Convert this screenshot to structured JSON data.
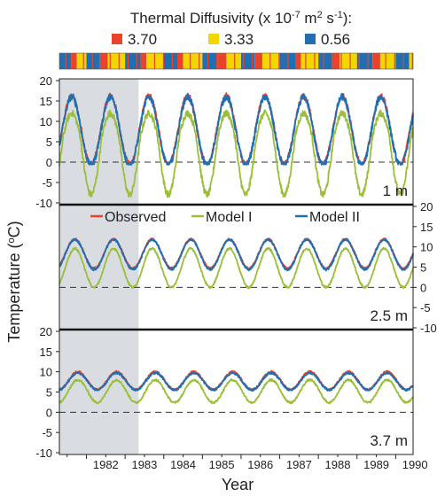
{
  "chart_data": {
    "type": "line",
    "header": {
      "title_text": "Thermal Diffusivity (x 10",
      "title_exp": "-7",
      "title_unit": " m",
      "title_unit_exp": "2",
      "title_unit2": " s",
      "title_unit2_exp": "-1",
      "title_tail": "):",
      "legend": [
        {
          "label": "3.70",
          "color": "#e8432b"
        },
        {
          "label": "3.33",
          "color": "#f2d600"
        },
        {
          "label": "0.56",
          "color": "#1f6fb2"
        }
      ],
      "diffusivity_strip": [
        {
          "start": 1981.3,
          "end": 1981.6,
          "class": "0.56"
        },
        {
          "start": 1981.6,
          "end": 1981.75,
          "class": "3.70"
        },
        {
          "start": 1981.75,
          "end": 1982.0,
          "class": "3.33"
        },
        {
          "start": 1982.0,
          "end": 1982.35,
          "class": "0.56"
        },
        {
          "start": 1982.35,
          "end": 1982.55,
          "class": "3.70"
        },
        {
          "start": 1982.55,
          "end": 1983.0,
          "class": "3.33"
        },
        {
          "start": 1983.0,
          "end": 1983.4,
          "class": "0.56"
        },
        {
          "start": 1983.4,
          "end": 1983.55,
          "class": "3.70"
        },
        {
          "start": 1983.55,
          "end": 1984.0,
          "class": "3.33"
        },
        {
          "start": 1984.0,
          "end": 1984.35,
          "class": "0.56"
        },
        {
          "start": 1984.35,
          "end": 1984.5,
          "class": "3.70"
        },
        {
          "start": 1984.5,
          "end": 1985.0,
          "class": "3.33"
        },
        {
          "start": 1985.0,
          "end": 1985.4,
          "class": "0.56"
        },
        {
          "start": 1985.4,
          "end": 1985.6,
          "class": "3.70"
        },
        {
          "start": 1985.6,
          "end": 1986.0,
          "class": "3.33"
        },
        {
          "start": 1986.0,
          "end": 1986.35,
          "class": "0.56"
        },
        {
          "start": 1986.35,
          "end": 1986.55,
          "class": "3.70"
        },
        {
          "start": 1986.55,
          "end": 1987.0,
          "class": "3.33"
        },
        {
          "start": 1987.0,
          "end": 1987.4,
          "class": "0.56"
        },
        {
          "start": 1987.4,
          "end": 1987.55,
          "class": "3.70"
        },
        {
          "start": 1987.55,
          "end": 1988.0,
          "class": "3.33"
        },
        {
          "start": 1988.0,
          "end": 1988.35,
          "class": "0.56"
        },
        {
          "start": 1988.35,
          "end": 1988.55,
          "class": "3.70"
        },
        {
          "start": 1988.55,
          "end": 1989.0,
          "class": "3.33"
        },
        {
          "start": 1989.0,
          "end": 1989.4,
          "class": "0.56"
        },
        {
          "start": 1989.4,
          "end": 1989.6,
          "class": "3.70"
        },
        {
          "start": 1989.6,
          "end": 1990.0,
          "class": "3.33"
        },
        {
          "start": 1990.0,
          "end": 1990.35,
          "class": "0.56"
        },
        {
          "start": 1990.35,
          "end": 1990.5,
          "class": "3.33"
        }
      ]
    },
    "xlabel": "Year",
    "ylabel": "Temperature (",
    "ylabel_sup": "o",
    "ylabel_tail": "C)",
    "xlim": [
      1981.3,
      1990.45
    ],
    "xticks": [
      1982,
      1983,
      1984,
      1985,
      1986,
      1987,
      1988,
      1989,
      1990
    ],
    "shaded_region": [
      1981.3,
      1983.35
    ],
    "series_legend": [
      {
        "name": "Observed",
        "color": "#e8432b"
      },
      {
        "name": "Model I",
        "color": "#9bbf3a"
      },
      {
        "name": "Model II",
        "color": "#1f6fb2"
      }
    ],
    "panels": [
      {
        "depth_label": "1 m",
        "ylim": [
          -10,
          20
        ],
        "yticks": [
          -10,
          -5,
          0,
          5,
          10,
          15,
          20
        ],
        "y_axis_side": "left",
        "zero_line": true,
        "series": [
          {
            "name": "Observed",
            "mean": 7.8,
            "amp": 8.4,
            "phase": 0.62,
            "floor": 0.0
          },
          {
            "name": "Model I",
            "mean": 4.0,
            "amp": 12.0,
            "phase": 0.62,
            "floor": -9.0
          },
          {
            "name": "Model II",
            "mean": 7.6,
            "amp": 8.4,
            "phase": 0.62,
            "floor": -0.5
          }
        ]
      },
      {
        "depth_label": "2.5 m",
        "ylim": [
          -10,
          20
        ],
        "yticks": [
          -10,
          -5,
          0,
          5,
          10,
          15,
          20
        ],
        "y_axis_side": "right",
        "zero_line": true,
        "series": [
          {
            "name": "Observed",
            "mean": 8.3,
            "amp": 3.6,
            "phase": 0.7,
            "floor": 4.0
          },
          {
            "name": "Model I",
            "mean": 4.8,
            "amp": 4.8,
            "phase": 0.7,
            "floor": -1.0
          },
          {
            "name": "Model II",
            "mean": 8.1,
            "amp": 3.7,
            "phase": 0.7,
            "floor": 4.0
          }
        ]
      },
      {
        "depth_label": "3.7 m",
        "ylim": [
          -10,
          20
        ],
        "yticks": [
          -10,
          -5,
          0,
          5,
          10,
          15,
          20
        ],
        "y_axis_side": "left",
        "zero_line": true,
        "series": [
          {
            "name": "Observed",
            "mean": 7.8,
            "amp": 2.2,
            "phase": 0.78,
            "floor": 4.5
          },
          {
            "name": "Model I",
            "mean": 5.2,
            "amp": 2.8,
            "phase": 0.78,
            "floor": 1.5
          },
          {
            "name": "Model II",
            "mean": 7.6,
            "amp": 2.1,
            "phase": 0.78,
            "floor": 4.5
          }
        ]
      }
    ]
  }
}
